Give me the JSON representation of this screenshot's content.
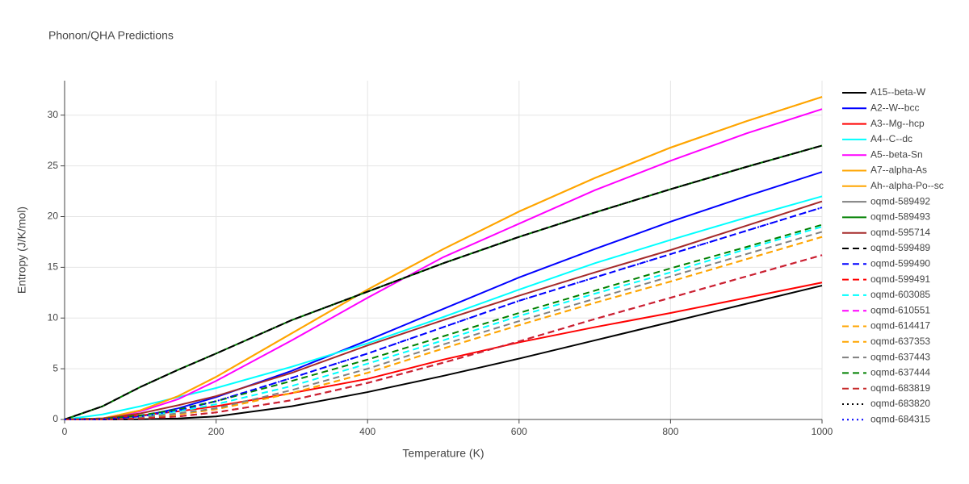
{
  "chart_data": {
    "type": "line",
    "title": "Phonon/QHA Predictions",
    "x_label": "Temperature (K)",
    "y_label": "Entropy (J/K/mol)",
    "x": [
      0,
      50,
      100,
      150,
      200,
      300,
      400,
      500,
      600,
      700,
      800,
      900,
      1000
    ],
    "xlim": [
      0,
      1000
    ],
    "xticks": [
      0,
      200,
      400,
      600,
      800,
      1000
    ],
    "ylim": [
      0,
      33.4
    ],
    "yticks": [
      0,
      5,
      10,
      15,
      20,
      25,
      30
    ],
    "grid": true,
    "legend": "right",
    "series": [
      {
        "name": "A15--beta-W",
        "color": "#000000",
        "dash": "solid",
        "values": [
          0,
          0,
          0.02,
          0.1,
          0.3,
          1.3,
          2.7,
          4.3,
          6.0,
          7.8,
          9.6,
          11.4,
          13.2
        ]
      },
      {
        "name": "A2--W--bcc",
        "color": "#0000ff",
        "dash": "solid",
        "values": [
          0,
          0.02,
          0.3,
          1.1,
          2.2,
          4.8,
          7.8,
          10.9,
          14.0,
          16.8,
          19.5,
          22.0,
          24.4
        ]
      },
      {
        "name": "A3--Mg--hcp",
        "color": "#ff0000",
        "dash": "solid",
        "values": [
          0,
          0.1,
          0.4,
          0.8,
          1.3,
          2.6,
          4.0,
          5.9,
          7.6,
          9.1,
          10.5,
          12.0,
          13.5
        ]
      },
      {
        "name": "A4--C--dc",
        "color": "#00ffff",
        "dash": "solid",
        "values": [
          0,
          0.5,
          1.3,
          2.2,
          3.1,
          5.2,
          7.5,
          10.1,
          12.8,
          15.4,
          17.7,
          19.9,
          22.0
        ]
      },
      {
        "name": "A5--beta-Sn",
        "color": "#ff00ff",
        "dash": "solid",
        "values": [
          0,
          0.1,
          0.8,
          2.0,
          3.8,
          7.8,
          12.0,
          16.0,
          19.3,
          22.6,
          25.5,
          28.2,
          30.6
        ]
      },
      {
        "name": "A7--alpha-As",
        "color": "#ffa500",
        "dash": "solid",
        "values": [
          0,
          0.1,
          0.9,
          2.3,
          4.2,
          8.5,
          12.8,
          16.8,
          20.5,
          23.8,
          26.8,
          29.4,
          31.8
        ]
      },
      {
        "name": "Ah--alpha-Po--sc",
        "color": "#ffa500",
        "dash": "solid",
        "values": [
          0,
          0.1,
          0.9,
          2.3,
          4.2,
          8.5,
          12.8,
          16.8,
          20.5,
          23.8,
          26.8,
          29.4,
          31.8
        ]
      },
      {
        "name": "oqmd-589492",
        "color": "#808080",
        "dash": "solid",
        "values": [
          0,
          1.3,
          3.2,
          4.9,
          6.5,
          9.8,
          12.6,
          15.4,
          18.0,
          20.4,
          22.7,
          24.9,
          27.0
        ]
      },
      {
        "name": "oqmd-589493",
        "color": "#008000",
        "dash": "solid",
        "values": [
          0,
          1.3,
          3.2,
          4.9,
          6.5,
          9.8,
          12.6,
          15.4,
          18.0,
          20.4,
          22.7,
          24.9,
          27.0
        ]
      },
      {
        "name": "oqmd-595714",
        "color": "#a52a2a",
        "dash": "solid",
        "values": [
          0,
          0.1,
          0.6,
          1.4,
          2.3,
          4.6,
          7.3,
          9.8,
          12.2,
          14.5,
          16.7,
          19.1,
          21.5
        ]
      },
      {
        "name": "oqmd-599489",
        "color": "#000000",
        "dash": "dash",
        "values": [
          0,
          1.3,
          3.2,
          4.9,
          6.5,
          9.8,
          12.6,
          15.4,
          18.0,
          20.4,
          22.7,
          24.9,
          27.0
        ]
      },
      {
        "name": "oqmd-599490",
        "color": "#0000ff",
        "dash": "dash",
        "values": [
          0,
          0.02,
          0.3,
          0.9,
          1.8,
          4.1,
          6.5,
          9.1,
          11.7,
          14.0,
          16.3,
          18.6,
          20.9
        ]
      },
      {
        "name": "oqmd-599491",
        "color": "#ff0000",
        "dash": "dash",
        "values": [
          0,
          0,
          0.1,
          0.3,
          0.7,
          1.9,
          3.6,
          5.6,
          7.7,
          9.9,
          12.0,
          14.1,
          16.2
        ]
      },
      {
        "name": "oqmd-603085",
        "color": "#00ffff",
        "dash": "dash",
        "values": [
          0,
          0.05,
          0.3,
          0.8,
          1.5,
          3.3,
          5.5,
          7.8,
          10.2,
          12.4,
          14.5,
          16.8,
          19.0
        ]
      },
      {
        "name": "oqmd-610551",
        "color": "#ff00ff",
        "dash": "dash",
        "values": [
          0,
          0,
          0.1,
          0.3,
          0.7,
          1.9,
          3.6,
          5.6,
          7.7,
          9.9,
          12.0,
          14.1,
          16.2
        ]
      },
      {
        "name": "oqmd-614417",
        "color": "#ffa500",
        "dash": "dash",
        "values": [
          0,
          0,
          0.2,
          0.5,
          1.0,
          2.6,
          4.6,
          7.0,
          9.3,
          11.5,
          13.6,
          15.8,
          18.0
        ]
      },
      {
        "name": "oqmd-637353",
        "color": "#ffa500",
        "dash": "dash",
        "values": [
          0,
          0,
          0.2,
          0.5,
          1.0,
          2.6,
          4.6,
          7.0,
          9.3,
          11.5,
          13.6,
          15.8,
          18.0
        ]
      },
      {
        "name": "oqmd-637443",
        "color": "#808080",
        "dash": "dash",
        "values": [
          0,
          0,
          0.2,
          0.6,
          1.1,
          2.9,
          5.0,
          7.4,
          9.7,
          11.9,
          14.1,
          16.3,
          18.5
        ]
      },
      {
        "name": "oqmd-637444",
        "color": "#008000",
        "dash": "dash",
        "values": [
          0,
          0.05,
          0.4,
          1.0,
          1.8,
          3.8,
          5.9,
          8.2,
          10.5,
          12.7,
          14.9,
          17.0,
          19.2
        ]
      },
      {
        "name": "oqmd-683819",
        "color": "#c62828",
        "dash": "dash",
        "values": [
          0,
          0,
          0.1,
          0.3,
          0.7,
          1.9,
          3.6,
          5.6,
          7.7,
          9.9,
          12.0,
          14.1,
          16.2
        ]
      },
      {
        "name": "oqmd-683820",
        "color": "#000000",
        "dash": "dot",
        "values": [
          0,
          1.3,
          3.2,
          4.9,
          6.5,
          9.8,
          12.6,
          15.4,
          18.0,
          20.4,
          22.7,
          24.9,
          27.0
        ]
      },
      {
        "name": "oqmd-684315",
        "color": "#0000ff",
        "dash": "dot",
        "values": [
          0,
          0.02,
          0.3,
          0.9,
          1.8,
          4.1,
          6.5,
          9.1,
          11.7,
          14.0,
          16.3,
          18.6,
          20.9
        ]
      }
    ]
  }
}
